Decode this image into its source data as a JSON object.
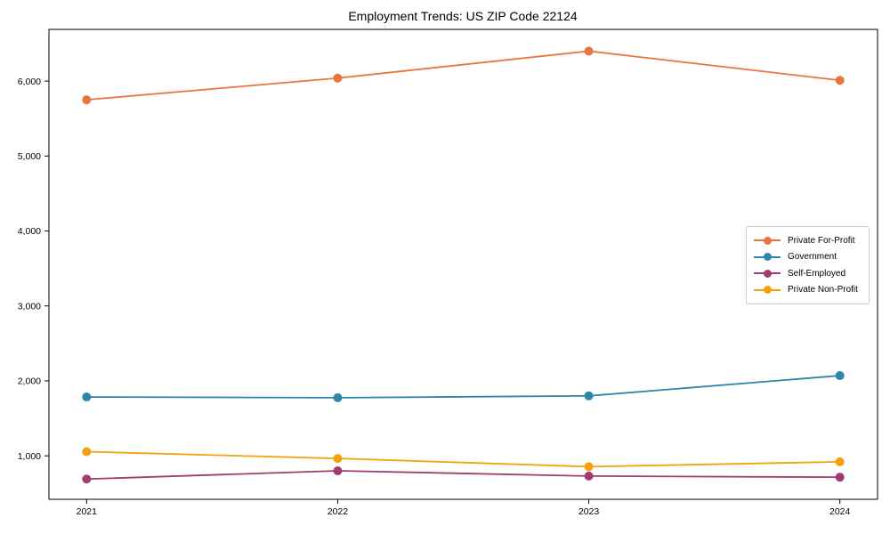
{
  "chart_data": {
    "type": "line",
    "title": "Employment Trends: US ZIP Code 22124",
    "x_labels": [
      "2021",
      "2022",
      "2023",
      "2024"
    ],
    "series": [
      {
        "name": "Private For-Profit",
        "color": "#E8763C",
        "values": [
          5750,
          6040,
          6400,
          6010
        ]
      },
      {
        "name": "Government",
        "color": "#2E86AB",
        "values": [
          1785,
          1775,
          1800,
          2070
        ]
      },
      {
        "name": "Self-Employed",
        "color": "#A23B72",
        "values": [
          690,
          800,
          730,
          715
        ]
      },
      {
        "name": "Private Non-Profit",
        "color": "#F5A00C",
        "values": [
          1055,
          965,
          855,
          920
        ]
      }
    ],
    "yticks": [
      1000,
      2000,
      3000,
      4000,
      5000,
      6000
    ],
    "ylim": [
      420,
      6690
    ],
    "xlim": [
      -0.15,
      3.15
    ],
    "grid": false,
    "legend_position": "center-right",
    "marker": "circle",
    "line_width": 1.8,
    "marker_radius": 5,
    "background_color": "#ffffff",
    "axis_color": "#000000",
    "legend_border_color": "#cccccc"
  }
}
